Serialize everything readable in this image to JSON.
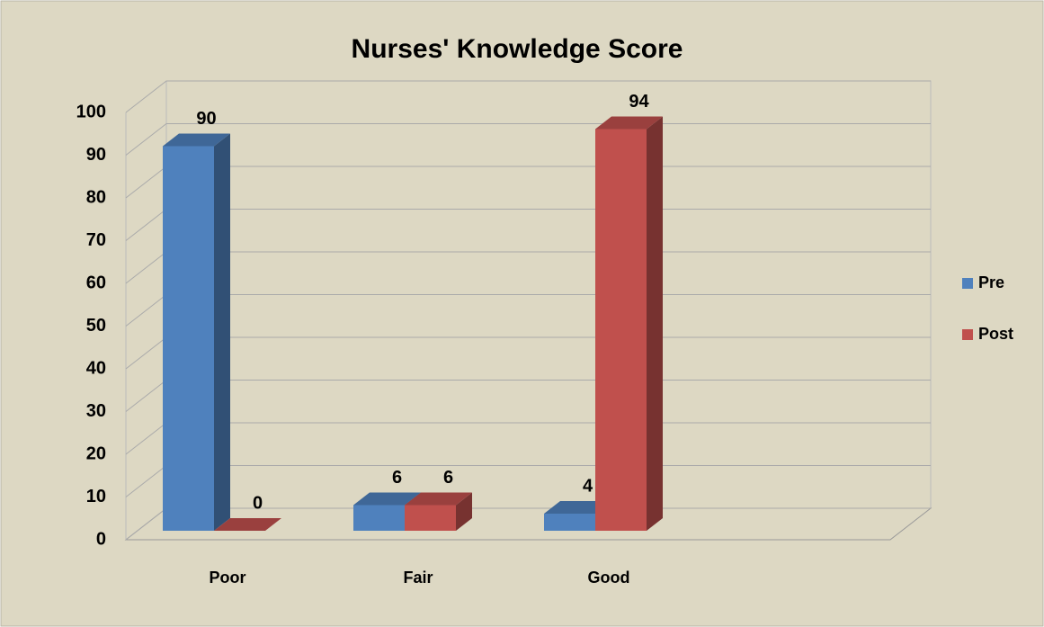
{
  "chart_data": {
    "type": "bar3d",
    "title": "Nurses' Knowledge Score",
    "categories": [
      "Poor",
      "Fair",
      "Good"
    ],
    "series": [
      {
        "name": "Pre",
        "color": "#4f81bd",
        "values": [
          90,
          6,
          4
        ]
      },
      {
        "name": "Post",
        "color": "#c0504d",
        "values": [
          0,
          6,
          94
        ]
      }
    ],
    "ylim": [
      0,
      100
    ],
    "yticks": [
      0,
      10,
      20,
      30,
      40,
      50,
      60,
      70,
      80,
      90,
      100
    ],
    "grid": true,
    "legend": "right"
  }
}
